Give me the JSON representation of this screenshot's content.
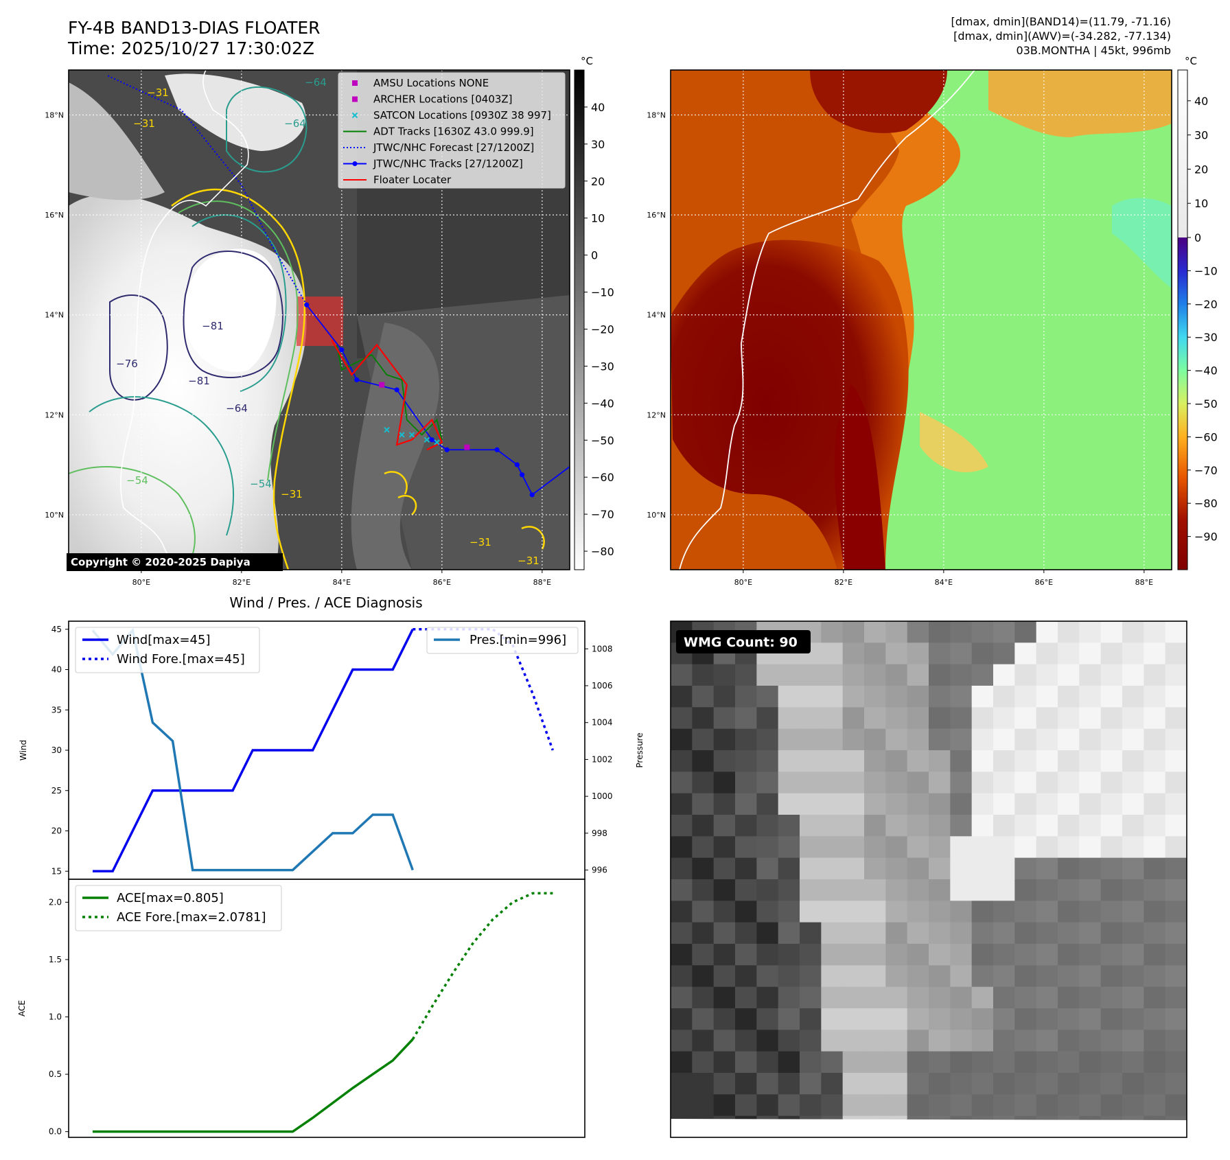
{
  "header": {
    "title_line1": "FY-4B BAND13-DIAS FLOATER",
    "title_line2": "Time: 2025/10/27 17:30:02Z",
    "info_line1": "[dmax, dmin](BAND14)=(11.79, -71.16)",
    "info_line2": "[dmax, dmin](AWV)=(-34.282, -77.134)",
    "info_line3": "03B.MONTHA | 45kt, 996mb"
  },
  "colors": {
    "wind": "#0000ee",
    "pressure": "#1f77b4",
    "ace": "#008000",
    "jtwc_track": "#0000ff",
    "adt_track": "#008000",
    "floater": "#ff0000",
    "satcon": "#17becf",
    "amsu_archer": "#bf00bf"
  },
  "map_left": {
    "colorbar_unit": "°C",
    "colorbar_ticks": [
      "40",
      "30",
      "20",
      "10",
      "0",
      "−10",
      "−20",
      "−30",
      "−40",
      "−50",
      "−60",
      "−70",
      "−80"
    ],
    "lat_labels": [
      "18°N",
      "16°N",
      "14°N",
      "12°N",
      "10°N"
    ],
    "lon_labels": [
      "80°E",
      "82°E",
      "84°E",
      "86°E",
      "88°E"
    ],
    "contour_labels": [
      "−64",
      "−31",
      "−31",
      "−64",
      "−81",
      "−76",
      "−81",
      "−64",
      "−54",
      "−54",
      "−31",
      "−31",
      "−31"
    ],
    "copyright": "Copyright © 2020-2025 Dapiya",
    "legend": [
      {
        "label": "AMSU Locations NONE",
        "marker": "square"
      },
      {
        "label": "ARCHER Locations [0403Z]",
        "marker": "square"
      },
      {
        "label": "SATCON Locations [0930Z 38 997]",
        "marker": "x"
      },
      {
        "label": "ADT Tracks [1630Z 43.0 999.9]",
        "marker": "line"
      },
      {
        "label": "JTWC/NHC Forecast [27/1200Z]",
        "marker": "dotted"
      },
      {
        "label": "JTWC/NHC Tracks [27/1200Z]",
        "marker": "line-dot"
      },
      {
        "label": "Floater Locater",
        "marker": "line-red"
      }
    ],
    "jtwc_track": [
      [
        88.6,
        11.0
      ],
      [
        87.8,
        10.4
      ],
      [
        87.6,
        10.8
      ],
      [
        87.5,
        11.0
      ],
      [
        87.1,
        11.3
      ],
      [
        86.1,
        11.3
      ],
      [
        85.8,
        11.5
      ],
      [
        85.1,
        12.5
      ],
      [
        84.3,
        12.7
      ],
      [
        84.0,
        13.3
      ],
      [
        83.3,
        14.2
      ]
    ],
    "jtwc_forecast": [
      [
        83.3,
        14.2
      ],
      [
        82.6,
        15.4
      ],
      [
        82.0,
        16.6
      ],
      [
        80.8,
        18.1
      ],
      [
        79.3,
        18.8
      ]
    ],
    "archer_points": [
      [
        84.8,
        12.6
      ],
      [
        86.5,
        11.35
      ]
    ],
    "satcon_points": [
      [
        85.4,
        11.6
      ],
      [
        85.7,
        11.5
      ],
      [
        85.9,
        11.45
      ],
      [
        84.9,
        11.7
      ],
      [
        85.2,
        11.6
      ]
    ]
  },
  "map_right": {
    "colorbar_unit": "°C",
    "colorbar_ticks": [
      "40",
      "30",
      "20",
      "10",
      "0",
      "−10",
      "−20",
      "−30",
      "−40",
      "−50",
      "−60",
      "−70",
      "−80",
      "−90"
    ],
    "lat_labels": [
      "18°N",
      "16°N",
      "14°N",
      "12°N",
      "10°N"
    ],
    "lon_labels": [
      "80°E",
      "82°E",
      "84°E",
      "86°E",
      "88°E"
    ]
  },
  "chart_data": [
    {
      "type": "line",
      "title": "Wind / Pres. / ACE Diagnosis",
      "ylabel": "Wind",
      "ylabel_right": "Pressure",
      "x_index": [
        0,
        1,
        2,
        3,
        4,
        5,
        6,
        7,
        8,
        9,
        10,
        11,
        12,
        13,
        14,
        15,
        16,
        17,
        18,
        19,
        20,
        21,
        22,
        23
      ],
      "ylim": [
        14,
        46
      ],
      "ylim_right": [
        995.5,
        1009.5
      ],
      "yticks": [
        15,
        20,
        25,
        30,
        35,
        40,
        45
      ],
      "yticks_right": [
        996,
        998,
        1000,
        1002,
        1004,
        1006,
        1008
      ],
      "series": [
        {
          "name": "Wind[max=45]",
          "axis": "left",
          "style": "solid",
          "x": [
            0,
            1,
            2,
            3,
            4,
            5,
            6,
            7,
            8,
            9,
            10,
            11,
            12,
            13,
            14,
            15,
            16
          ],
          "values": [
            15,
            15,
            20,
            25,
            25,
            25,
            25,
            25,
            30,
            30,
            30,
            30,
            35,
            40,
            40,
            40,
            45
          ]
        },
        {
          "name": "Wind Fore.[max=45]",
          "axis": "left",
          "style": "dotted",
          "x": [
            16,
            17,
            18,
            19,
            20,
            21,
            22,
            23
          ],
          "values": [
            45,
            45,
            45,
            45,
            45,
            43,
            37,
            30
          ]
        },
        {
          "name": "Pres.[min=996]",
          "axis": "right",
          "style": "solid",
          "x": [
            0,
            1,
            2,
            3,
            4,
            5,
            6,
            7,
            8,
            9,
            10,
            11,
            12,
            13,
            14,
            15,
            16
          ],
          "values": [
            1009,
            1007.7,
            1009,
            1004,
            1003,
            996,
            996,
            996,
            996,
            996,
            996,
            997,
            998,
            998,
            999,
            999,
            996
          ]
        }
      ]
    },
    {
      "type": "line",
      "ylabel": "ACE",
      "x_index": [
        0,
        1,
        2,
        3,
        4,
        5,
        6,
        7,
        8,
        9,
        10,
        11,
        12,
        13,
        14,
        15,
        16,
        17,
        18,
        19,
        20,
        21,
        22,
        23
      ],
      "ylim": [
        -0.05,
        2.2
      ],
      "yticks": [
        0.0,
        0.5,
        1.0,
        1.5,
        2.0
      ],
      "ytick_labels": [
        "0.0",
        "0.5",
        "1.0",
        "1.5",
        "2.0"
      ],
      "series": [
        {
          "name": "ACE[max=0.805]",
          "style": "solid",
          "x": [
            0,
            1,
            2,
            3,
            4,
            5,
            6,
            7,
            8,
            9,
            10,
            11,
            12,
            13,
            14,
            15,
            16
          ],
          "values": [
            0,
            0,
            0,
            0,
            0,
            0,
            0,
            0,
            0,
            0,
            0,
            0.12,
            0.25,
            0.38,
            0.5,
            0.62,
            0.805
          ]
        },
        {
          "name": "ACE Fore.[max=2.0781]",
          "style": "dotted",
          "x": [
            16,
            17,
            18,
            19,
            20,
            21,
            22,
            23
          ],
          "values": [
            0.805,
            1.1,
            1.38,
            1.64,
            1.85,
            2.0,
            2.0781,
            2.0781
          ]
        }
      ]
    }
  ],
  "wmg": {
    "count_label": "WMG Count: 90"
  }
}
